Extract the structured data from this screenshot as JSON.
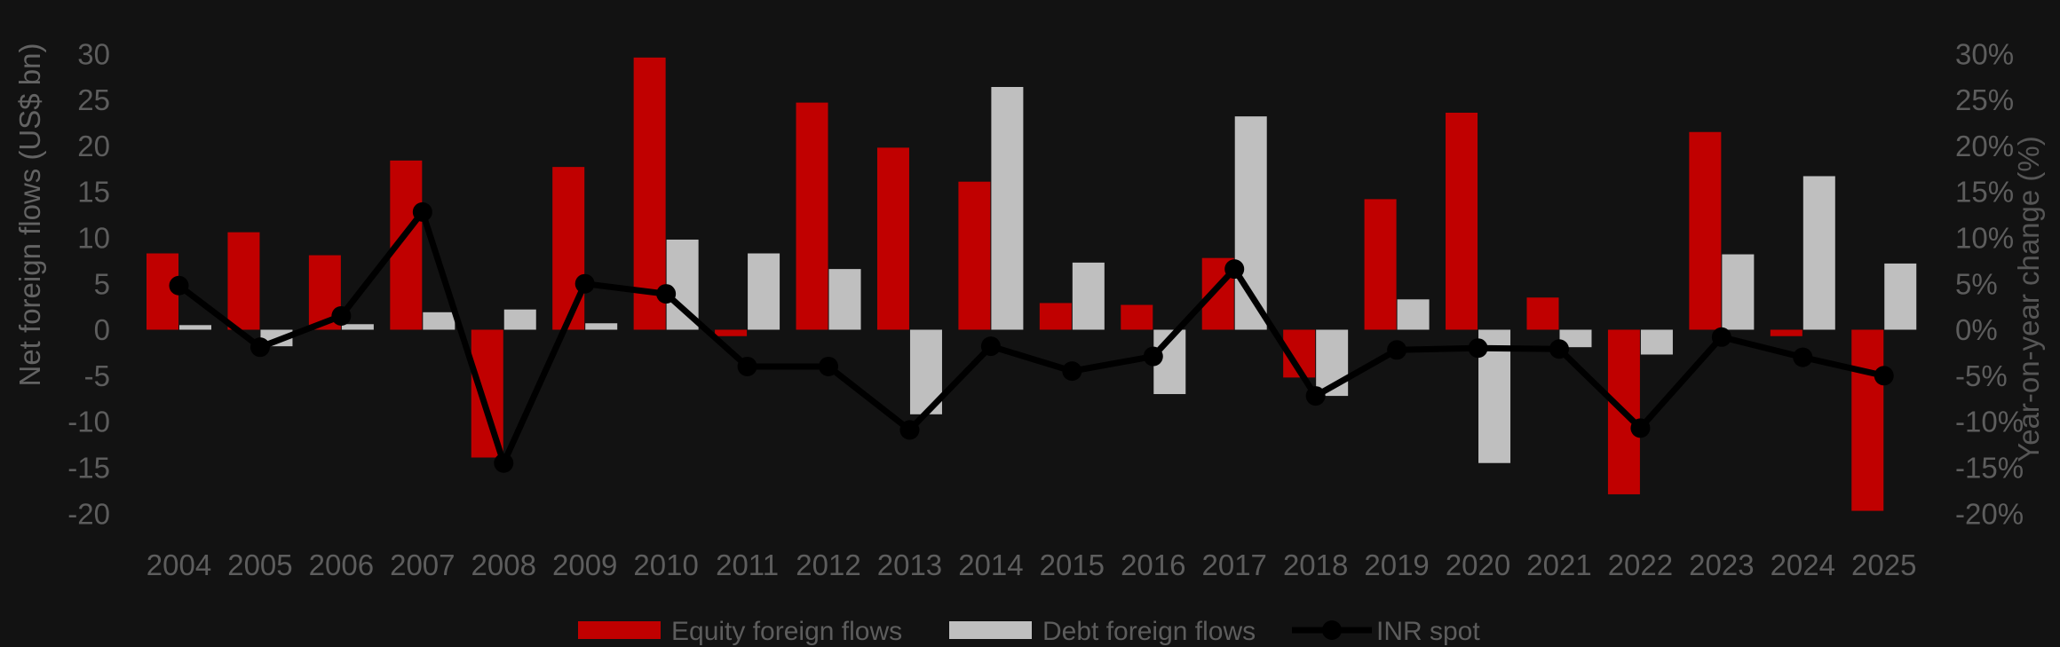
{
  "chart_data": {
    "type": "bar+line",
    "categories": [
      "2004",
      "2005",
      "2006",
      "2007",
      "2008",
      "2009",
      "2010",
      "2011",
      "2012",
      "2013",
      "2014",
      "2015",
      "2016",
      "2017",
      "2018",
      "2019",
      "2020",
      "2021",
      "2022",
      "2023",
      "2024",
      "2025"
    ],
    "series": [
      {
        "name": "Equity foreign flows",
        "type": "bar",
        "color": "#c00000",
        "values": [
          8.3,
          10.6,
          8.1,
          18.4,
          -13.9,
          17.7,
          29.6,
          -0.7,
          24.7,
          19.8,
          16.1,
          2.9,
          2.7,
          7.8,
          -5.2,
          14.2,
          23.6,
          3.5,
          -17.9,
          21.5,
          -0.7,
          -19.7
        ]
      },
      {
        "name": "Debt foreign flows",
        "type": "bar",
        "color": "#bfbfbf",
        "values": [
          0.5,
          -1.8,
          0.6,
          1.9,
          2.2,
          0.7,
          9.8,
          8.3,
          6.6,
          -9.2,
          26.4,
          7.3,
          -7.0,
          23.2,
          -7.2,
          3.3,
          -14.5,
          -1.9,
          -2.7,
          8.2,
          16.7,
          7.2
        ]
      },
      {
        "name": "INR spot",
        "type": "line",
        "color": "#000000",
        "values": [
          4.8,
          -1.9,
          1.5,
          12.8,
          -14.5,
          5.0,
          3.9,
          -4.0,
          -4.0,
          -10.9,
          -1.8,
          -4.5,
          -2.9,
          6.6,
          -7.2,
          -2.2,
          -2.0,
          -2.1,
          -10.7,
          -0.8,
          -3.0,
          -5.0
        ]
      }
    ],
    "left_axis": {
      "label": "Net foreign flows (US$ bn)",
      "min": -20,
      "max": 30,
      "step": 5,
      "suffix": ""
    },
    "right_axis": {
      "label": "Year-on-year change (%)",
      "min": -20,
      "max": 30,
      "step": 5,
      "suffix": "%"
    },
    "legend": [
      "Equity foreign flows",
      "Debt foreign flows",
      "INR spot"
    ],
    "grid": false,
    "legend_position": "bottom"
  },
  "colors": {
    "background": "#121212",
    "equity_bar": "#c00000",
    "debt_bar": "#bfbfbf",
    "inr_line": "#000000",
    "axis_text": "#5d5d5d",
    "axis_title_left": "#636363",
    "axis_title_right": "#565656"
  }
}
